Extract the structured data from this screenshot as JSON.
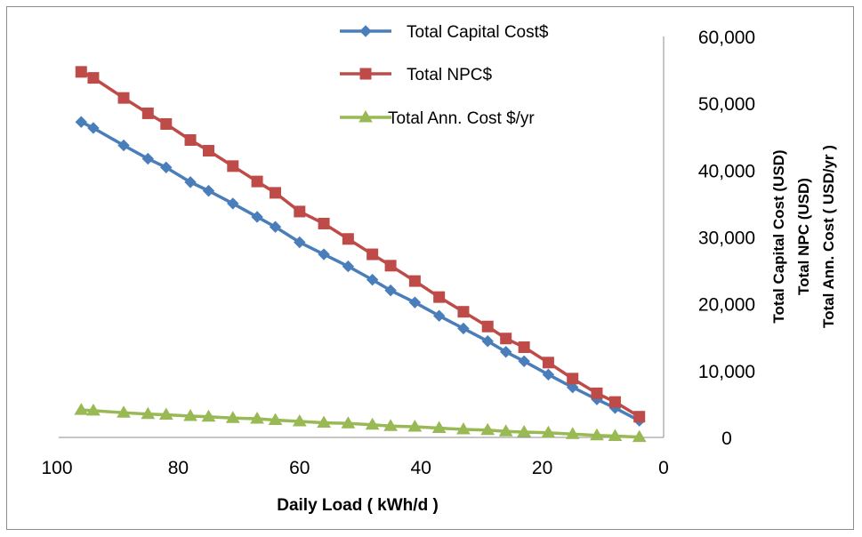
{
  "chart_data": {
    "type": "line",
    "xlabel": "Daily Load ( kWh/d )",
    "ylabel_lines": [
      "Total Capital Cost (USD)",
      "Total NPC  (USD)",
      "Total Ann. Cost ( USD/yr )"
    ],
    "x_reversed": true,
    "xlim": [
      0,
      100
    ],
    "ylim": [
      0,
      60000
    ],
    "x_ticks": [
      100,
      80,
      60,
      40,
      20,
      0
    ],
    "x_tick_labels": [
      "100",
      "80",
      "60",
      "40",
      "20",
      "0"
    ],
    "y_ticks": [
      0,
      10000,
      20000,
      30000,
      40000,
      50000,
      60000
    ],
    "y_tick_labels": [
      "0",
      "10,000",
      "20,000",
      "30,000",
      "40,000",
      "50,000",
      "60,000"
    ],
    "y_axis_side": "right",
    "grid": false,
    "legend_position": "top-center",
    "x": [
      96,
      94,
      89,
      85,
      82,
      78,
      75,
      71,
      67,
      64,
      60,
      56,
      52,
      48,
      45,
      41,
      37,
      33,
      29,
      26,
      23,
      19,
      15,
      11,
      8,
      4
    ],
    "series": [
      {
        "name": "Total Capital Cost$",
        "color": "#4a7ebb",
        "marker": "diamond",
        "values": [
          47200,
          46300,
          43700,
          41700,
          40400,
          38200,
          36900,
          35000,
          33000,
          31500,
          29200,
          27400,
          25600,
          23600,
          22000,
          20200,
          18200,
          16300,
          14400,
          12800,
          11400,
          9400,
          7500,
          5700,
          4400,
          2500
        ]
      },
      {
        "name": "Total NPC$",
        "color": "#be4b48",
        "marker": "square",
        "values": [
          54700,
          53800,
          50800,
          48500,
          46900,
          44500,
          42900,
          40600,
          38300,
          36600,
          33800,
          32000,
          29700,
          27400,
          25700,
          23400,
          21000,
          18800,
          16600,
          14800,
          13500,
          11200,
          8800,
          6600,
          5300,
          3100
        ]
      },
      {
        "name": "Total Ann. Cost $/yr",
        "color": "#98b954",
        "marker": "triangle",
        "values": [
          4100,
          4000,
          3700,
          3500,
          3400,
          3200,
          3100,
          2900,
          2800,
          2600,
          2400,
          2200,
          2100,
          1900,
          1700,
          1600,
          1400,
          1200,
          1100,
          900,
          800,
          700,
          500,
          300,
          200,
          50
        ]
      }
    ]
  }
}
